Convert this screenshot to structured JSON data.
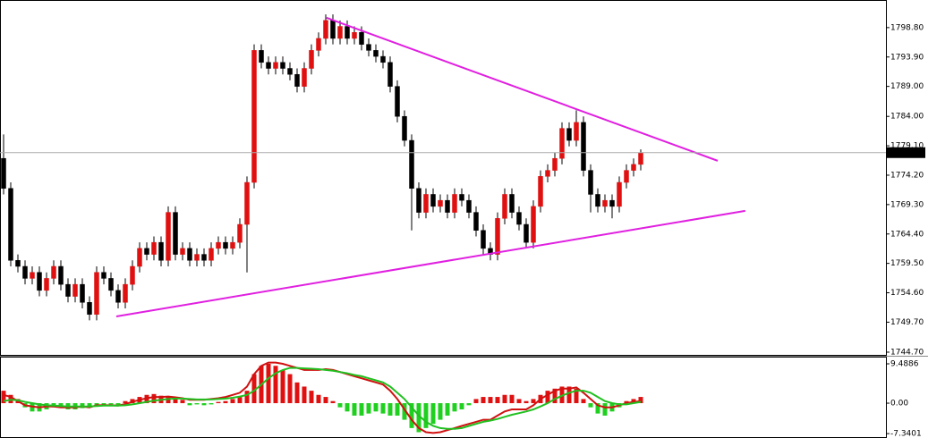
{
  "chart_data": [
    {
      "type": "candlestick",
      "xlim": [
        -0.5,
        123.25
      ],
      "ylim": [
        1744.25,
        1803.4
      ],
      "yticks": [
        {
          "value": 1798.8,
          "label": "1798.80"
        },
        {
          "value": 1793.9,
          "label": "1793.90"
        },
        {
          "value": 1789,
          "label": "1789.00"
        },
        {
          "value": 1784,
          "label": "1784.00"
        },
        {
          "value": 1779.1,
          "label": "1779.10"
        },
        {
          "value": 1774.2,
          "label": "1774.20"
        },
        {
          "value": 1769.3,
          "label": "1769.30"
        },
        {
          "value": 1764.4,
          "label": "1764.40"
        },
        {
          "value": 1759.5,
          "label": "1759.50"
        },
        {
          "value": 1754.6,
          "label": "1754.60"
        },
        {
          "value": 1749.7,
          "label": "1749.70"
        },
        {
          "value": 1744.7,
          "label": "1744.70"
        }
      ],
      "up_color": "#e01010",
      "down_color": "#000000",
      "open": [
        1777,
        1772,
        1760,
        1759,
        1757,
        1758,
        1755,
        1757,
        1759,
        1756,
        1754,
        1756,
        1753,
        1751,
        1758,
        1757,
        1755,
        1753,
        1756,
        1759,
        1762,
        1761,
        1763,
        1760,
        1768,
        1761,
        1762,
        1760,
        1761,
        1760,
        1762,
        1763,
        1762,
        1763,
        1766,
        1773,
        1795,
        1793,
        1792,
        1793,
        1792,
        1791,
        1789,
        1792,
        1795,
        1797,
        1800,
        1797,
        1799,
        1797,
        1798,
        1796,
        1795,
        1794,
        1793,
        1789,
        1784,
        1780,
        1772,
        1768,
        1771,
        1769,
        1770,
        1768,
        1771,
        1770,
        1768,
        1765,
        1762,
        1761,
        1767,
        1771,
        1768,
        1766,
        1763,
        1769,
        1774,
        1775,
        1777,
        1782,
        1780,
        1783,
        1775,
        1771,
        1769,
        1770,
        1769,
        1773,
        1775,
        1776
      ],
      "high": [
        1781,
        1773,
        1761,
        1760,
        1759,
        1759,
        1758,
        1760,
        1760,
        1757,
        1757,
        1757,
        1754,
        1759,
        1759,
        1758,
        1756,
        1757,
        1760,
        1763,
        1763,
        1764,
        1764,
        1769,
        1769,
        1763,
        1763,
        1762,
        1762,
        1763,
        1764,
        1764,
        1764,
        1767,
        1774,
        1796,
        1796,
        1794,
        1794,
        1794,
        1793,
        1792,
        1793,
        1796,
        1798,
        1801,
        1801,
        1800,
        1800,
        1799,
        1799,
        1797,
        1796,
        1795,
        1794,
        1790,
        1785,
        1781,
        1773,
        1772,
        1772,
        1771,
        1771,
        1772,
        1772,
        1771,
        1769,
        1766,
        1763,
        1768,
        1772,
        1772,
        1769,
        1767,
        1770,
        1775,
        1776,
        1778,
        1783,
        1783,
        1785,
        1784,
        1776,
        1772,
        1771,
        1771,
        1774,
        1776,
        1777,
        1778.5
      ],
      "low": [
        1771,
        1759,
        1758,
        1756,
        1756,
        1754,
        1754,
        1756,
        1755,
        1753,
        1753,
        1752,
        1750,
        1750,
        1756,
        1754,
        1752,
        1752,
        1755,
        1758,
        1760,
        1760,
        1759,
        1759,
        1760,
        1760,
        1759,
        1759,
        1759,
        1759,
        1761,
        1761,
        1761,
        1762,
        1758,
        1772,
        1792,
        1791,
        1791,
        1791,
        1790,
        1788,
        1788,
        1791,
        1794,
        1796,
        1796,
        1796,
        1796,
        1796,
        1795,
        1794,
        1793,
        1792,
        1788,
        1783,
        1779,
        1765,
        1767,
        1767,
        1768,
        1768,
        1767,
        1767,
        1769,
        1767,
        1764,
        1761,
        1760,
        1760,
        1766,
        1767,
        1765,
        1762,
        1762,
        1768,
        1773,
        1774,
        1776,
        1779,
        1779,
        1774,
        1768,
        1768,
        1768,
        1767,
        1768,
        1772,
        1774,
        1775
      ],
      "close": [
        1772,
        1760,
        1759,
        1757,
        1758,
        1755,
        1757,
        1759,
        1756,
        1754,
        1756,
        1753,
        1751,
        1758,
        1757,
        1755,
        1753,
        1756,
        1759,
        1762,
        1761,
        1763,
        1760,
        1768,
        1761,
        1762,
        1760,
        1761,
        1760,
        1762,
        1763,
        1762,
        1763,
        1766,
        1773,
        1795,
        1793,
        1792,
        1793,
        1792,
        1791,
        1789,
        1792,
        1795,
        1797,
        1800,
        1797,
        1799,
        1797,
        1798,
        1796,
        1795,
        1794,
        1793,
        1789,
        1784,
        1780,
        1772,
        1768,
        1771,
        1769,
        1770,
        1768,
        1771,
        1770,
        1768,
        1765,
        1762,
        1761,
        1767,
        1771,
        1768,
        1766,
        1763,
        1769,
        1774,
        1775,
        1777,
        1782,
        1780,
        1783,
        1775,
        1771,
        1769,
        1770,
        1769,
        1773,
        1775,
        1776,
        1777.96
      ],
      "trendlines": [
        {
          "color": "#e020e0",
          "x": [
            45.1,
            99.75
          ],
          "y": [
            1800.44,
            1776.6
          ]
        },
        {
          "color": "#e020e0",
          "x": [
            15.75,
            103.6
          ],
          "y": [
            1750.66,
            1768.25
          ]
        }
      ]
    },
    {
      "type": "macd",
      "xlim": [
        -0.5,
        123.25
      ],
      "ylim": [
        -8.4,
        11
      ],
      "yticks": [
        9.4886,
        {
          "value": 0,
          "label": "0.00"
        },
        -7.3401
      ],
      "histogram": {
        "up_color": "#e01010",
        "down_color": "#20d020",
        "values": [
          3,
          2,
          1,
          -1,
          -2,
          -2,
          -1.5,
          -1,
          -1,
          -1.5,
          -1.5,
          -1.2,
          -1,
          -0.5,
          -0.5,
          -0.3,
          -0.4,
          0.5,
          1,
          1.5,
          2,
          2.2,
          1.8,
          1.5,
          1,
          0.8,
          -0.5,
          -0.3,
          -0.5,
          -0.3,
          0.3,
          0.5,
          1,
          1.5,
          3,
          7,
          9,
          9.5,
          9,
          8,
          7,
          5,
          4,
          3,
          2,
          1.5,
          0.5,
          -1,
          -2,
          -3,
          -3,
          -2.5,
          -2,
          -2.5,
          -3,
          -3,
          -4,
          -6,
          -7,
          -6,
          -5,
          -4,
          -3,
          -2,
          -1.5,
          -0.5,
          1,
          1.5,
          1.5,
          1.5,
          2,
          2,
          1,
          0.5,
          1,
          2,
          3,
          3.5,
          4,
          4,
          3.5,
          1,
          -1,
          -2.5,
          -3,
          -2,
          -1,
          0.5,
          1,
          1.5
        ]
      },
      "series": [
        {
          "color": "#d01010",
          "values": [
            2,
            1.5,
            0.5,
            -0.5,
            -0.8,
            -1,
            -0.8,
            -0.8,
            -1,
            -1,
            -1,
            -0.8,
            -1,
            -0.5,
            -0.5,
            -0.5,
            -0.6,
            -0.2,
            0.3,
            0.8,
            1.2,
            1.5,
            1.5,
            1.6,
            1.4,
            1.2,
            0.8,
            0.8,
            0.8,
            1,
            1.2,
            1.5,
            2,
            2.5,
            4,
            7,
            9,
            9.8,
            9.8,
            9.5,
            9,
            8.5,
            8,
            8,
            8,
            8.2,
            8,
            7.5,
            7,
            6.5,
            6,
            5.5,
            5,
            4.5,
            3,
            1,
            -1.5,
            -4,
            -6,
            -7,
            -7.2,
            -7,
            -6.5,
            -6,
            -5.5,
            -5,
            -4.5,
            -4,
            -4,
            -3,
            -2,
            -1.5,
            -1.5,
            -1.5,
            -0.5,
            1,
            2,
            3,
            3.5,
            3.5,
            3.8,
            2.5,
            1,
            -0.5,
            -1,
            -1,
            -0.5,
            0,
            0.3,
            0.5
          ]
        },
        {
          "color": "#20c020",
          "values": [
            0.5,
            0.8,
            0.7,
            0.3,
            0,
            -0.3,
            -0.5,
            -0.6,
            -0.7,
            -0.8,
            -0.8,
            -0.8,
            -0.8,
            -0.7,
            -0.6,
            -0.6,
            -0.6,
            -0.5,
            -0.3,
            0,
            0.3,
            0.6,
            0.8,
            1,
            1.1,
            1.1,
            1,
            0.9,
            0.9,
            0.9,
            1,
            1.1,
            1.3,
            1.6,
            2,
            3,
            4.5,
            6,
            7.2,
            8,
            8.5,
            8.5,
            8.4,
            8.3,
            8.2,
            8,
            7.8,
            7.5,
            7.2,
            6.8,
            6.5,
            6,
            5.5,
            5,
            4,
            2.5,
            1,
            -1,
            -3,
            -4.5,
            -5.5,
            -6,
            -6.2,
            -6.2,
            -6,
            -5.5,
            -5,
            -4.5,
            -4.2,
            -3.8,
            -3.3,
            -2.8,
            -2.4,
            -2,
            -1.5,
            -0.8,
            0,
            1,
            1.8,
            2.5,
            3,
            3,
            2.5,
            1.5,
            0.5,
            0,
            -0.3,
            -0.3,
            0,
            0.3
          ]
        }
      ]
    }
  ]
}
